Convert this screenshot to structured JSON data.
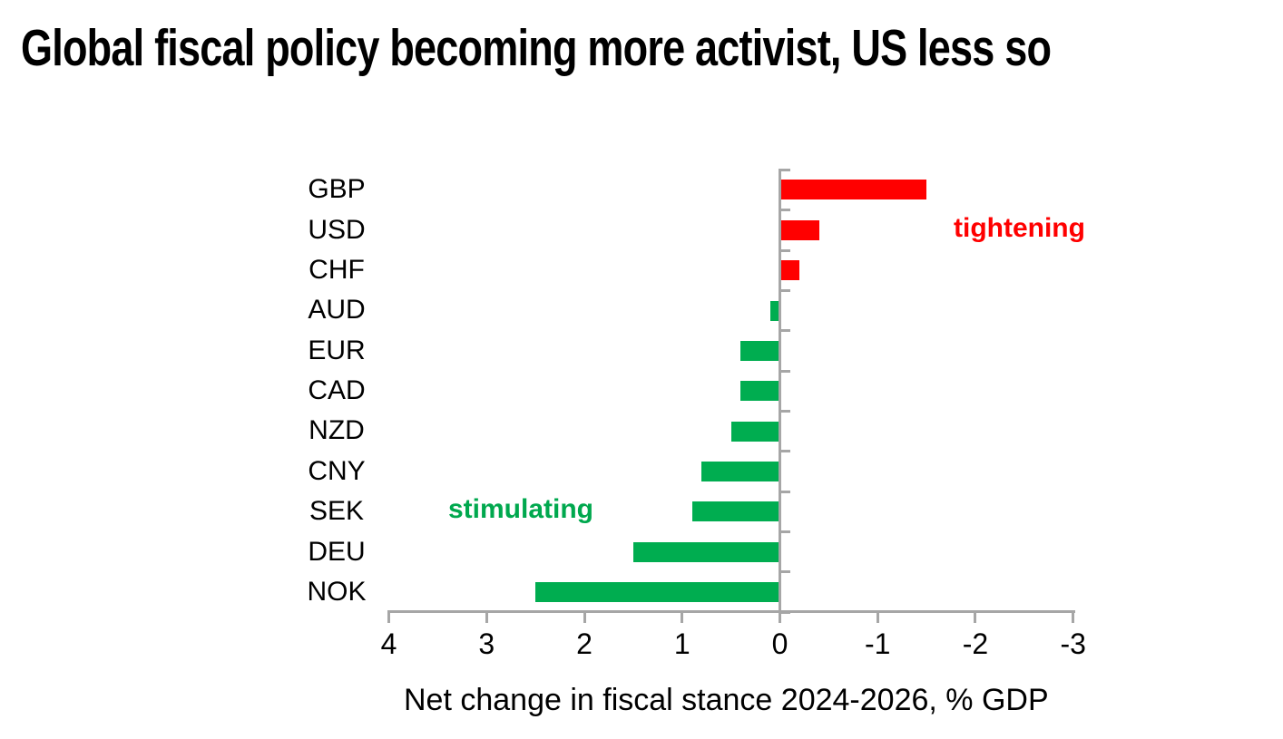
{
  "page": {
    "background": "#FFFFFF"
  },
  "chart_data": {
    "type": "bar",
    "orientation": "horizontal",
    "title": "Global fiscal policy becoming more activist, US less so",
    "categories": [
      "GBP",
      "USD",
      "CHF",
      "AUD",
      "EUR",
      "CAD",
      "NZD",
      "CNY",
      "SEK",
      "DEU",
      "NOK"
    ],
    "values": [
      -1.5,
      -0.4,
      -0.2,
      0.1,
      0.4,
      0.4,
      0.5,
      0.8,
      0.9,
      1.5,
      2.5
    ],
    "xlabel": "Net change in fiscal stance 2024-2026, % GDP",
    "x_ticks": [
      4,
      3,
      2,
      1,
      0,
      -1,
      -2,
      -3
    ],
    "xlim": [
      4,
      -3
    ],
    "x_axis_reversed": true,
    "grid": false,
    "legend": false,
    "annotations": [
      {
        "id": "tightening",
        "text": "tightening",
        "color": "#FF0000",
        "anchor_category": "USD",
        "side": "right"
      },
      {
        "id": "stimulating",
        "text": "stimulating",
        "color": "#00A84E",
        "anchor_category": "SEK",
        "side": "left"
      }
    ],
    "colors": {
      "positive_bar": "#00AD50",
      "negative_bar": "#FF0000",
      "axis": "#A6A6A6",
      "text": "#000000"
    }
  }
}
